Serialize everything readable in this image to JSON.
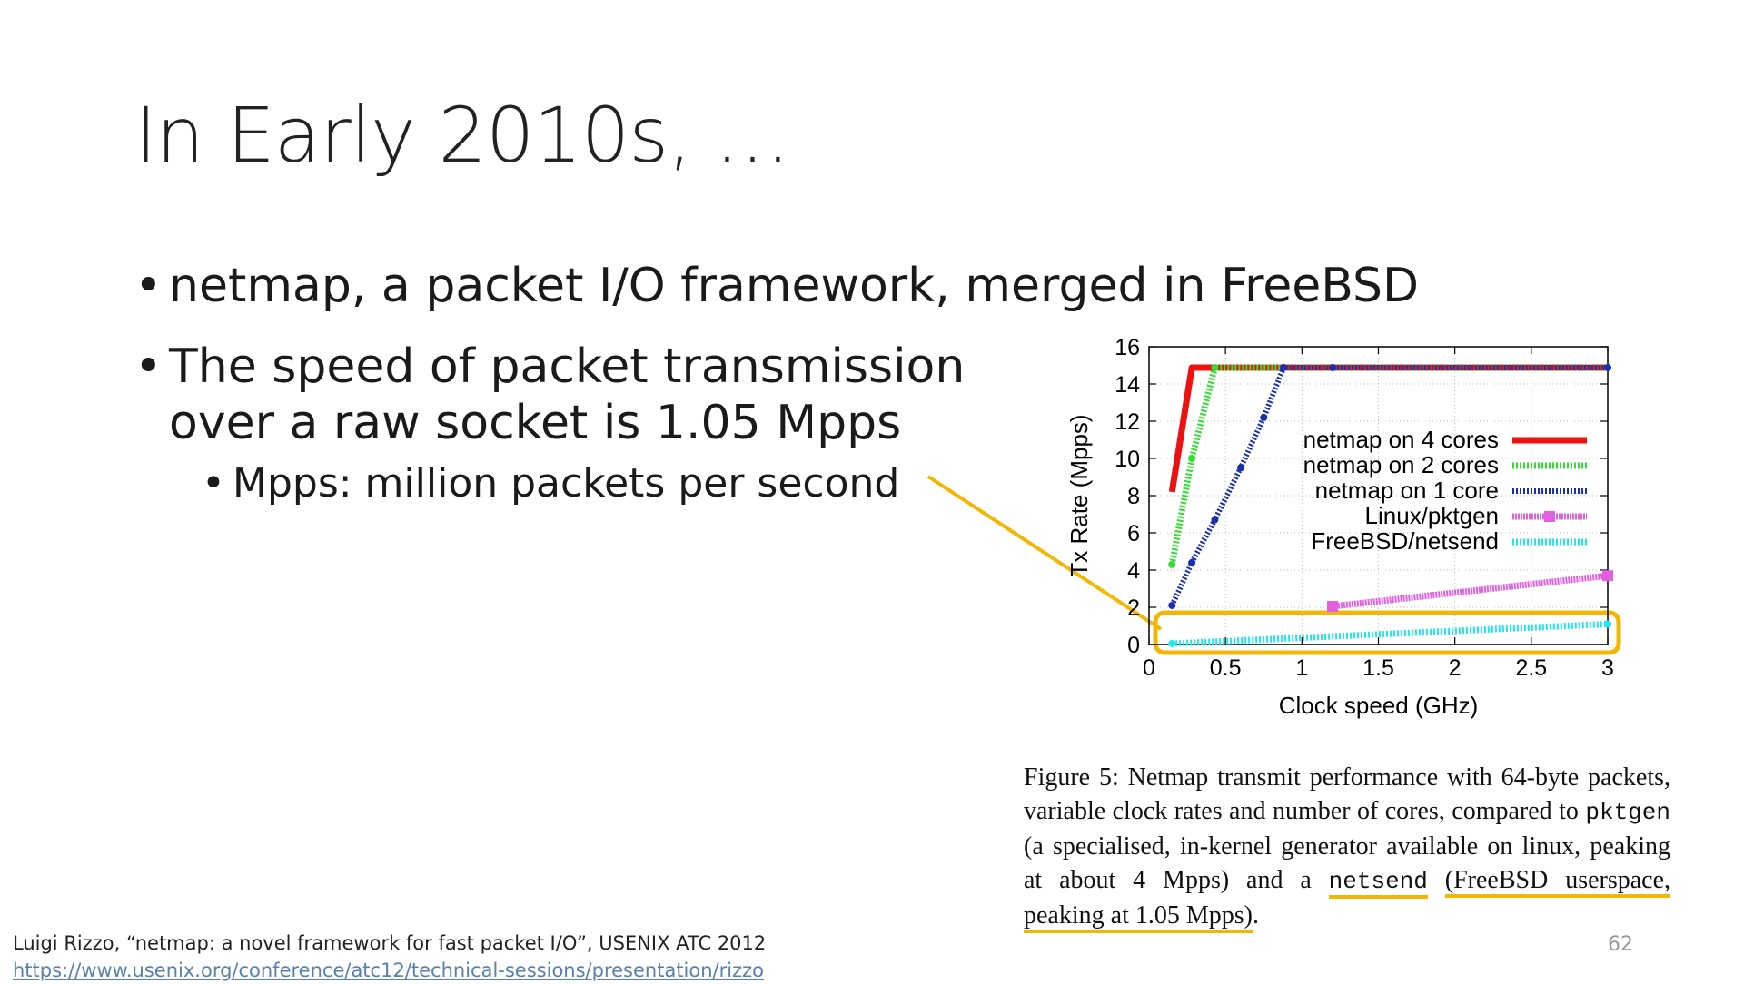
{
  "slide": {
    "title": "In Early 2010s, …",
    "bullets": [
      {
        "marker": "•",
        "text": "netmap, a packet I/O framework, merged in FreeBSD"
      },
      {
        "marker": "•",
        "line1": "The speed of packet transmission",
        "line2": "over a raw socket is 1.05  Mpps"
      },
      {
        "marker": "•",
        "text": "Mpps: million packets per second"
      }
    ],
    "page_number": "62"
  },
  "caption": {
    "part1": "Figure 5:  Netmap transmit performance with 64-byte packets, variable clock rates and number of cores, compared to ",
    "code1": "pktgen",
    "part2": " (a specialised, in-kernel generator available on linux, peaking at about 4 Mpps) and a ",
    "code2": "netsend",
    "part3": "(FreeBSD userspace, peaking at 1.05 Mpps)",
    "part4": "."
  },
  "citation": {
    "text": "Luigi Rizzo, “netmap: a novel framework for fast packet I/O”, USENIX ATC 2012",
    "link": "https://www.usenix.org/conference/atc12/technical-sessions/presentation/rizzo"
  },
  "colors": {
    "highlight": "#f2b705",
    "netmap4": "#ee1111",
    "netmap2": "#33dd33",
    "netmap1": "#1a2eb0",
    "pktgen": "#e060e0",
    "netsend": "#22e5f0"
  },
  "chart_data": {
    "type": "line",
    "xlabel": "Clock speed (GHz)",
    "ylabel": "Tx Rate (Mpps)",
    "xlim": [
      0,
      3
    ],
    "ylim": [
      0,
      16
    ],
    "xticks": [
      "0",
      "0.5",
      "1",
      "1.5",
      "2",
      "2.5",
      "3"
    ],
    "yticks": [
      "0",
      "2",
      "4",
      "6",
      "8",
      "10",
      "12",
      "14",
      "16"
    ],
    "grid": true,
    "legend_position": "right",
    "series": [
      {
        "name": "netmap on 4 cores",
        "points": [
          [
            0.15,
            8.2
          ],
          [
            0.28,
            14.88
          ],
          [
            3.0,
            14.88
          ]
        ]
      },
      {
        "name": "netmap on 2 cores",
        "points": [
          [
            0.15,
            4.3
          ],
          [
            0.28,
            10.0
          ],
          [
            0.43,
            14.88
          ],
          [
            3.0,
            14.88
          ]
        ]
      },
      {
        "name": "netmap on 1 core",
        "points": [
          [
            0.15,
            2.1
          ],
          [
            0.28,
            4.4
          ],
          [
            0.43,
            6.7
          ],
          [
            0.6,
            9.5
          ],
          [
            0.75,
            12.2
          ],
          [
            0.88,
            14.88
          ],
          [
            1.2,
            14.88
          ],
          [
            3.0,
            14.88
          ]
        ]
      },
      {
        "name": "Linux/pktgen",
        "points": [
          [
            1.2,
            2.05
          ],
          [
            3.0,
            3.7
          ]
        ]
      },
      {
        "name": "FreeBSD/netsend",
        "points": [
          [
            0.15,
            0.05
          ],
          [
            3.0,
            1.1
          ]
        ]
      }
    ]
  }
}
